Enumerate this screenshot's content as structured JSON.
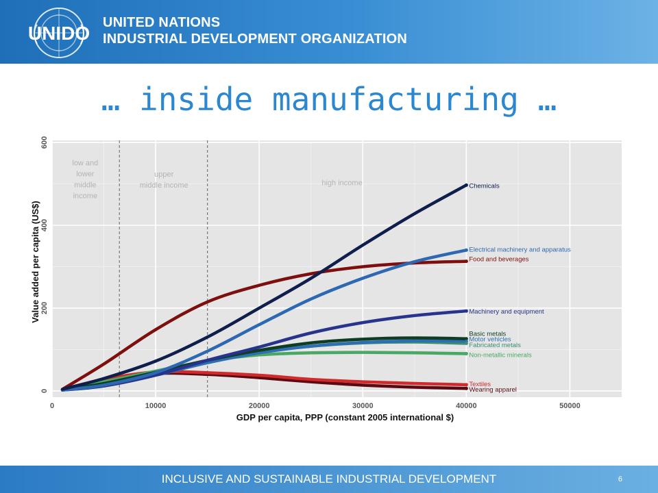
{
  "header": {
    "logo_text": "UNIDO",
    "org_line1": "UNITED NATIONS",
    "org_line2": "INDUSTRIAL DEVELOPMENT ORGANIZATION"
  },
  "slide": {
    "title": "… inside manufacturing …",
    "footer_text": "INCLUSIVE AND SUSTAINABLE INDUSTRIAL DEVELOPMENT",
    "page_number": "6"
  },
  "colors": {
    "header_bg": "#2a82cc",
    "title": "#2a87d0",
    "plot_bg": "#e5e5e5"
  },
  "chart_data": {
    "type": "line",
    "xlabel": "GDP per capita, PPP (constant 2005 international $)",
    "ylabel": "Value added per capita (US$)",
    "xlim": [
      0,
      55000
    ],
    "ylim": [
      -15,
      605
    ],
    "x_ticks": [
      0,
      10000,
      20000,
      30000,
      40000,
      50000
    ],
    "y_ticks": [
      0,
      200,
      400,
      600
    ],
    "grid": true,
    "vlines": [
      6500,
      15000
    ],
    "regions": [
      {
        "lines": [
          "low and",
          "lower",
          "middle",
          "income"
        ],
        "x": 3200,
        "y": 545
      },
      {
        "lines": [
          "upper",
          "middle income"
        ],
        "x": 10800,
        "y": 517
      },
      {
        "lines": [
          "high income"
        ],
        "x": 28000,
        "y": 497
      }
    ],
    "x": [
      1000,
      5000,
      10000,
      15000,
      20000,
      25000,
      30000,
      35000,
      40000
    ],
    "series": [
      {
        "name": "Chemicals",
        "color": "#0f1f4d",
        "label_y": 497,
        "values": [
          4,
          30,
          72,
          130,
          200,
          272,
          352,
          428,
          497
        ]
      },
      {
        "name": "Electrical machinery and apparatus",
        "color": "#2d68b3",
        "label_y": 343,
        "values": [
          2,
          14,
          44,
          96,
          160,
          222,
          272,
          312,
          340
        ]
      },
      {
        "name": "Food and beverages",
        "color": "#7e0f0f",
        "label_y": 320,
        "values": [
          4,
          65,
          148,
          215,
          255,
          283,
          300,
          309,
          313
        ]
      },
      {
        "name": "Machinery and equipment",
        "color": "#27338c",
        "label_y": 193,
        "values": [
          2,
          12,
          38,
          74,
          106,
          140,
          165,
          182,
          193
        ]
      },
      {
        "name": "Basic metals",
        "color": "#0e3d24",
        "label_y": 140,
        "values": [
          3,
          18,
          45,
          74,
          98,
          116,
          125,
          128,
          126
        ]
      },
      {
        "name": "Motor vehicles",
        "color": "#2d6fb0",
        "label_y": 126,
        "values": [
          2,
          12,
          38,
          68,
          92,
          108,
          117,
          121,
          120
        ]
      },
      {
        "name": "Fabricated metals",
        "color": "#3c8f72",
        "label_y": 112,
        "values": [
          3,
          16,
          42,
          70,
          93,
          108,
          116,
          118,
          115
        ]
      },
      {
        "name": "Non-metallic minerals",
        "color": "#4aa865",
        "label_y": 88,
        "values": [
          3,
          22,
          48,
          72,
          87,
          92,
          93,
          92,
          90
        ]
      },
      {
        "name": "Textiles",
        "color": "#d12a2a",
        "label_y": 18,
        "values": [
          4,
          28,
          46,
          44,
          38,
          28,
          22,
          18,
          15
        ]
      },
      {
        "name": "Wearing apparel",
        "color": "#5c0a12",
        "label_y": 5,
        "values": [
          3,
          26,
          42,
          40,
          32,
          22,
          14,
          9,
          6
        ]
      }
    ]
  }
}
